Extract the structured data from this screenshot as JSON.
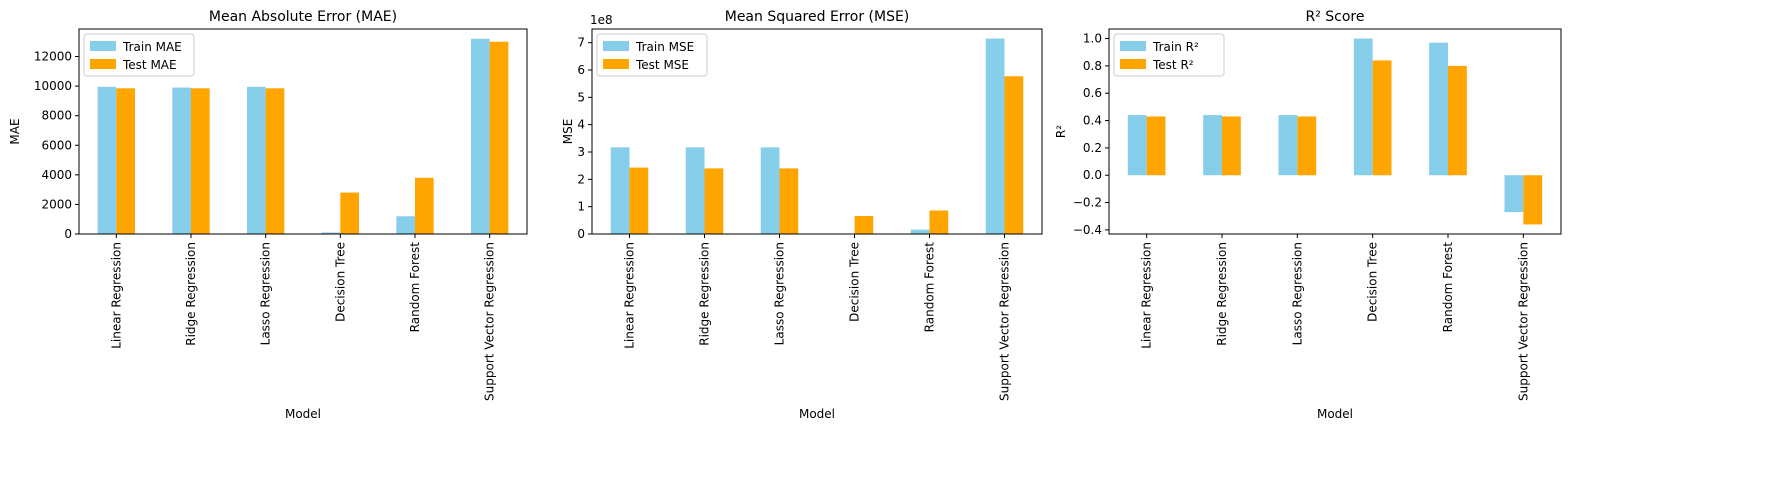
{
  "colors": {
    "train": "#87ceeb",
    "test": "#ffa500"
  },
  "chart_data": [
    {
      "type": "bar",
      "title": "Mean Absolute Error (MAE)",
      "xlabel": "Model",
      "ylabel": "MAE",
      "categories": [
        "Linear Regression",
        "Ridge Regression",
        "Lasso Regression",
        "Decision Tree",
        "Random Forest",
        "Support Vector Regression"
      ],
      "series": [
        {
          "name": "Train MAE",
          "values": [
            9950,
            9900,
            9950,
            100,
            1200,
            13200
          ]
        },
        {
          "name": "Test MAE",
          "values": [
            9850,
            9850,
            9850,
            2800,
            3800,
            13000
          ]
        }
      ],
      "ylim": [
        0,
        13860
      ],
      "yticks": [
        0,
        2000,
        4000,
        6000,
        8000,
        10000,
        12000
      ],
      "ytick_labels": [
        "0",
        "2000",
        "4000",
        "6000",
        "8000",
        "10000",
        "12000"
      ],
      "legend": "top-left",
      "grid": false
    },
    {
      "type": "bar",
      "title": "Mean Squared Error (MSE)",
      "xlabel": "Model",
      "ylabel": "MSE",
      "offset_text": "1e8",
      "categories": [
        "Linear Regression",
        "Ridge Regression",
        "Lasso Regression",
        "Decision Tree",
        "Random Forest",
        "Support Vector Regression"
      ],
      "series": [
        {
          "name": "Train MSE",
          "values": [
            3.17,
            3.17,
            3.17,
            0.0,
            0.16,
            7.15
          ]
        },
        {
          "name": "Test MSE",
          "values": [
            2.43,
            2.4,
            2.4,
            0.66,
            0.86,
            5.77
          ]
        }
      ],
      "ylim": [
        0,
        7.5
      ],
      "yticks": [
        0,
        1,
        2,
        3,
        4,
        5,
        6,
        7
      ],
      "ytick_labels": [
        "0",
        "1",
        "2",
        "3",
        "4",
        "5",
        "6",
        "7"
      ],
      "legend": "top-left",
      "grid": false
    },
    {
      "type": "bar",
      "title": "R² Score",
      "xlabel": "Model",
      "ylabel": "R²",
      "categories": [
        "Linear Regression",
        "Ridge Regression",
        "Lasso Regression",
        "Decision Tree",
        "Random Forest",
        "Support Vector Regression"
      ],
      "series": [
        {
          "name": "Train R²",
          "values": [
            0.44,
            0.44,
            0.44,
            1.0,
            0.97,
            -0.27
          ]
        },
        {
          "name": "Test R²",
          "values": [
            0.43,
            0.43,
            0.43,
            0.84,
            0.8,
            -0.36
          ]
        }
      ],
      "ylim": [
        -0.43,
        1.07
      ],
      "yticks": [
        -0.4,
        -0.2,
        0.0,
        0.2,
        0.4,
        0.6,
        0.8,
        1.0
      ],
      "ytick_labels": [
        "−0.4",
        "−0.2",
        "0.0",
        "0.2",
        "0.4",
        "0.6",
        "0.8",
        "1.0"
      ],
      "legend": "top-left",
      "grid": false
    }
  ]
}
